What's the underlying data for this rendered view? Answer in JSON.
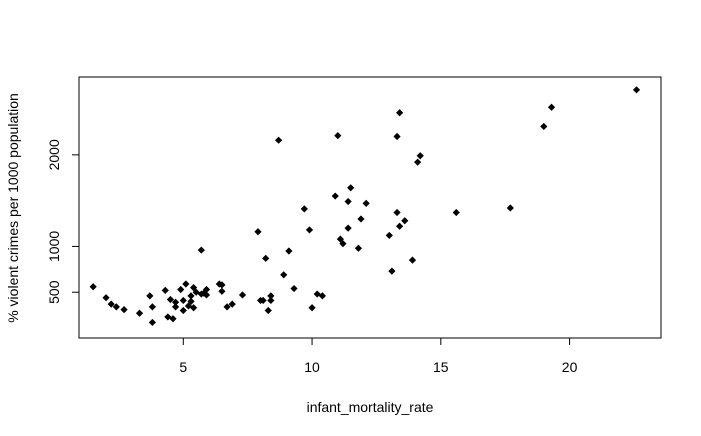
{
  "chart_data": {
    "type": "scatter",
    "title": "",
    "xlabel": "infant_mortality_rate",
    "ylabel": "% violent crimes per 1000 population",
    "xlim": [
      0.95,
      23.55
    ],
    "ylim": [
      0,
      2850
    ],
    "xticks": [
      5,
      10,
      15,
      20
    ],
    "yticks": [
      500,
      1000,
      2000
    ],
    "grid": false,
    "marker": "diamond",
    "points": [
      [
        1.5,
        560
      ],
      [
        2.0,
        440
      ],
      [
        2.2,
        370
      ],
      [
        2.4,
        340
      ],
      [
        2.7,
        310
      ],
      [
        3.3,
        270
      ],
      [
        3.7,
        460
      ],
      [
        3.8,
        340
      ],
      [
        3.8,
        170
      ],
      [
        4.3,
        520
      ],
      [
        4.4,
        230
      ],
      [
        4.5,
        420
      ],
      [
        4.6,
        210
      ],
      [
        4.7,
        340
      ],
      [
        4.7,
        390
      ],
      [
        4.9,
        530
      ],
      [
        5.0,
        300
      ],
      [
        5.0,
        410
      ],
      [
        5.1,
        590
      ],
      [
        5.2,
        350
      ],
      [
        5.3,
        460
      ],
      [
        5.3,
        400
      ],
      [
        5.4,
        550
      ],
      [
        5.4,
        330
      ],
      [
        5.5,
        500
      ],
      [
        5.7,
        960
      ],
      [
        5.7,
        480
      ],
      [
        5.8,
        490
      ],
      [
        5.9,
        530
      ],
      [
        5.9,
        470
      ],
      [
        6.4,
        590
      ],
      [
        6.5,
        510
      ],
      [
        6.5,
        580
      ],
      [
        6.7,
        340
      ],
      [
        6.9,
        370
      ],
      [
        7.3,
        470
      ],
      [
        7.9,
        1160
      ],
      [
        8.0,
        410
      ],
      [
        8.1,
        410
      ],
      [
        8.2,
        870
      ],
      [
        8.3,
        300
      ],
      [
        8.4,
        460
      ],
      [
        8.4,
        410
      ],
      [
        8.7,
        2160
      ],
      [
        8.9,
        690
      ],
      [
        9.1,
        950
      ],
      [
        9.3,
        540
      ],
      [
        9.7,
        1410
      ],
      [
        9.9,
        1180
      ],
      [
        10.0,
        330
      ],
      [
        10.2,
        480
      ],
      [
        10.4,
        460
      ],
      [
        10.9,
        1550
      ],
      [
        11.0,
        2210
      ],
      [
        11.1,
        1080
      ],
      [
        11.2,
        1030
      ],
      [
        11.4,
        1200
      ],
      [
        11.4,
        1490
      ],
      [
        11.5,
        1640
      ],
      [
        11.8,
        980
      ],
      [
        11.9,
        1300
      ],
      [
        12.1,
        1470
      ],
      [
        13.0,
        1120
      ],
      [
        13.1,
        730
      ],
      [
        13.3,
        2200
      ],
      [
        13.3,
        1370
      ],
      [
        13.4,
        2460
      ],
      [
        13.4,
        1220
      ],
      [
        13.6,
        1280
      ],
      [
        13.9,
        850
      ],
      [
        14.1,
        1920
      ],
      [
        14.2,
        1990
      ],
      [
        15.6,
        1370
      ],
      [
        17.7,
        1420
      ],
      [
        19.0,
        2310
      ],
      [
        19.3,
        2520
      ],
      [
        22.6,
        2710
      ]
    ]
  }
}
